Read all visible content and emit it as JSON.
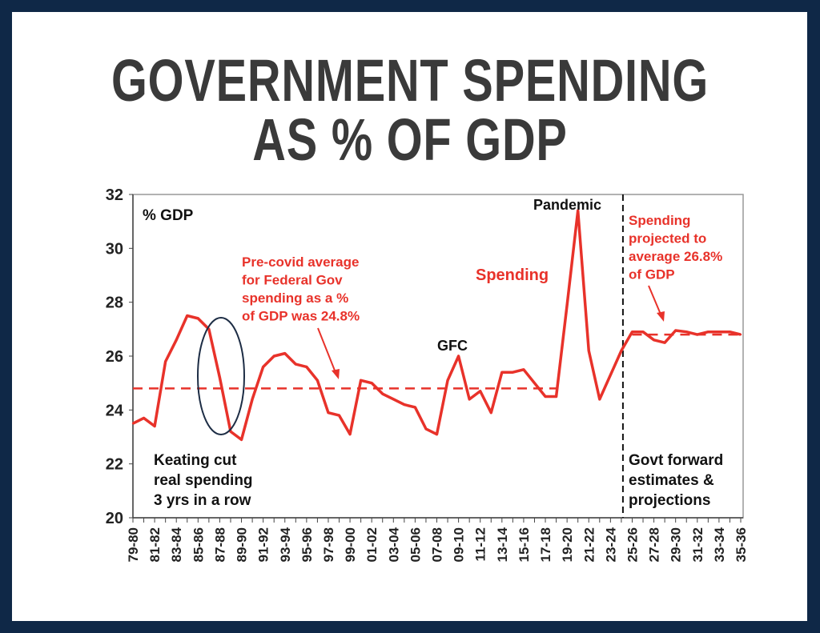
{
  "title": {
    "line1": "GOVERNMENT SPENDING",
    "line2": "AS % OF GDP"
  },
  "colors": {
    "spending": "#e8322a",
    "navy": "#0f2847",
    "title": "#3a3a3a"
  },
  "chart_data": {
    "type": "line",
    "ylabel": "% GDP",
    "ylim": [
      20,
      32
    ],
    "yticks": [
      20,
      22,
      24,
      26,
      28,
      30,
      32
    ],
    "x": [
      "79-80",
      "80-81",
      "81-82",
      "82-83",
      "83-84",
      "84-85",
      "85-86",
      "86-87",
      "87-88",
      "88-89",
      "89-90",
      "90-91",
      "91-92",
      "92-93",
      "93-94",
      "94-95",
      "95-96",
      "96-97",
      "97-98",
      "98-99",
      "99-00",
      "00-01",
      "01-02",
      "02-03",
      "03-04",
      "04-05",
      "05-06",
      "06-07",
      "07-08",
      "08-09",
      "09-10",
      "10-11",
      "11-12",
      "12-13",
      "13-14",
      "14-15",
      "15-16",
      "16-17",
      "17-18",
      "18-19",
      "19-20",
      "20-21",
      "21-22",
      "22-23",
      "23-24",
      "24-25",
      "25-26",
      "26-27",
      "27-28",
      "28-29",
      "29-30",
      "30-31",
      "31-32",
      "32-33",
      "33-34",
      "34-35",
      "35-36"
    ],
    "xtick_labels": [
      "79-80",
      "81-82",
      "83-84",
      "85-86",
      "87-88",
      "89-90",
      "91-92",
      "93-94",
      "95-96",
      "97-98",
      "99-00",
      "01-02",
      "03-04",
      "05-06",
      "07-08",
      "09-10",
      "11-12",
      "13-14",
      "15-16",
      "17-18",
      "19-20",
      "21-22",
      "23-24",
      "25-26",
      "27-28",
      "29-30",
      "31-32",
      "33-34",
      "35-36"
    ],
    "series": [
      {
        "name": "Spending",
        "values": [
          23.5,
          23.7,
          23.4,
          25.8,
          26.6,
          27.5,
          27.4,
          27.0,
          25.2,
          23.2,
          22.9,
          24.4,
          25.6,
          26.0,
          26.1,
          25.7,
          25.6,
          25.1,
          23.9,
          23.8,
          23.1,
          25.1,
          25.0,
          24.6,
          24.4,
          24.2,
          24.1,
          23.3,
          23.1,
          25.1,
          26.0,
          24.4,
          24.7,
          23.9,
          25.4,
          25.4,
          25.5,
          25.0,
          24.5,
          24.5,
          27.9,
          31.4,
          26.2,
          24.4,
          25.3,
          26.2,
          26.9,
          26.9,
          26.6,
          26.5,
          26.95,
          26.9,
          26.8,
          26.9,
          26.9,
          26.9,
          26.8
        ]
      }
    ],
    "reference_lines": [
      {
        "name": "Pre-covid average",
        "value": 24.8,
        "from": "79-80",
        "to": "18-19"
      },
      {
        "name": "Projected average",
        "value": 26.8,
        "from": "25-26",
        "to": "35-36"
      }
    ],
    "forecast_start": "24-25",
    "annotations": {
      "pre_covid": [
        "Pre-covid average",
        "for Federal Gov",
        "spending as a %",
        "of GDP was 24.8%"
      ],
      "spending": "Spending",
      "gfc": "GFC",
      "pandemic": "Pandemic",
      "projected": [
        "Spending",
        "projected to",
        "average 26.8%",
        "of GDP"
      ],
      "keating": [
        "Keating cut",
        "real spending",
        "3 yrs in a row"
      ],
      "forward": [
        "Govt forward",
        "estimates &",
        "projections"
      ]
    }
  }
}
